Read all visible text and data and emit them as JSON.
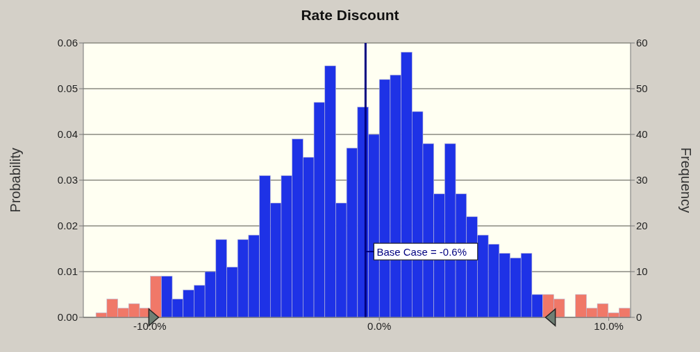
{
  "chart_data": {
    "type": "histogram",
    "title": "Rate Discount",
    "ylabel": "Probability",
    "y2label": "Frequency",
    "bins": [
      -12.35,
      -11.875,
      -11.4,
      -10.925,
      -10.45,
      -9.975,
      -9.5,
      -9.025,
      -8.55,
      -8.075,
      -7.6,
      -7.125,
      -6.65,
      -6.175,
      -5.7,
      -5.225,
      -4.75,
      -4.275,
      -3.8,
      -3.325,
      -2.85,
      -2.375,
      -1.9,
      -1.425,
      -0.95,
      -0.475,
      0,
      0.475,
      0.95,
      1.425,
      1.9,
      2.375,
      2.85,
      3.325,
      3.8,
      4.275,
      4.75,
      5.225,
      5.7,
      6.175,
      6.65,
      7.125,
      7.6,
      8.075,
      8.55,
      9.025,
      9.5,
      9.975,
      10.45,
      10.925
    ],
    "series": [
      {
        "axis": "y2",
        "values": [
          1,
          4,
          2,
          3,
          2,
          9,
          9,
          4,
          6,
          7,
          10,
          17,
          11,
          17,
          18,
          31,
          25,
          31,
          39,
          35,
          47,
          55,
          25,
          37,
          46,
          40,
          52,
          53,
          58,
          45,
          38,
          27,
          38,
          27,
          22,
          18,
          16,
          14,
          13,
          14,
          5,
          5,
          4,
          0,
          5,
          2,
          3,
          1,
          2
        ],
        "colors": [
          "#f07868",
          "#f07868",
          "#f07868",
          "#f07868",
          "#f07868",
          "#f07868",
          "#1e32e6",
          "#1e32e6",
          "#1e32e6",
          "#1e32e6",
          "#1e32e6",
          "#1e32e6",
          "#1e32e6",
          "#1e32e6",
          "#1e32e6",
          "#1e32e6",
          "#1e32e6",
          "#1e32e6",
          "#1e32e6",
          "#1e32e6",
          "#1e32e6",
          "#1e32e6",
          "#1e32e6",
          "#1e32e6",
          "#1e32e6",
          "#1e32e6",
          "#1e32e6",
          "#1e32e6",
          "#1e32e6",
          "#1e32e6",
          "#1e32e6",
          "#1e32e6",
          "#1e32e6",
          "#1e32e6",
          "#1e32e6",
          "#1e32e6",
          "#1e32e6",
          "#1e32e6",
          "#1e32e6",
          "#1e32e6",
          "#1e32e6",
          "#f07868",
          "#f07868",
          "#f07868",
          "#f07868",
          "#f07868",
          "#f07868",
          "#f07868",
          "#f07868"
        ]
      }
    ],
    "xlim": [
      -12.9,
      10.95
    ],
    "xticks": [
      {
        "value": -10,
        "label": "-10.0%"
      },
      {
        "value": 0,
        "label": "0.0%"
      },
      {
        "value": 10,
        "label": "10.0%"
      }
    ],
    "ylim": [
      0,
      0.06
    ],
    "yticks": [
      {
        "value": 0,
        "label": "0.00"
      },
      {
        "value": 0.01,
        "label": "0.01"
      },
      {
        "value": 0.02,
        "label": "0.02"
      },
      {
        "value": 0.03,
        "label": "0.03"
      },
      {
        "value": 0.04,
        "label": "0.04"
      },
      {
        "value": 0.05,
        "label": "0.05"
      },
      {
        "value": 0.06,
        "label": "0.06"
      }
    ],
    "y2lim": [
      0,
      60
    ],
    "y2ticks": [
      0,
      10,
      20,
      30,
      40,
      50,
      60
    ],
    "ref_lines": [
      {
        "axis": "x",
        "value": -0.6,
        "label": "Base Case = -0.6%",
        "color": "#000080"
      }
    ],
    "grid": "y",
    "legend": false
  }
}
